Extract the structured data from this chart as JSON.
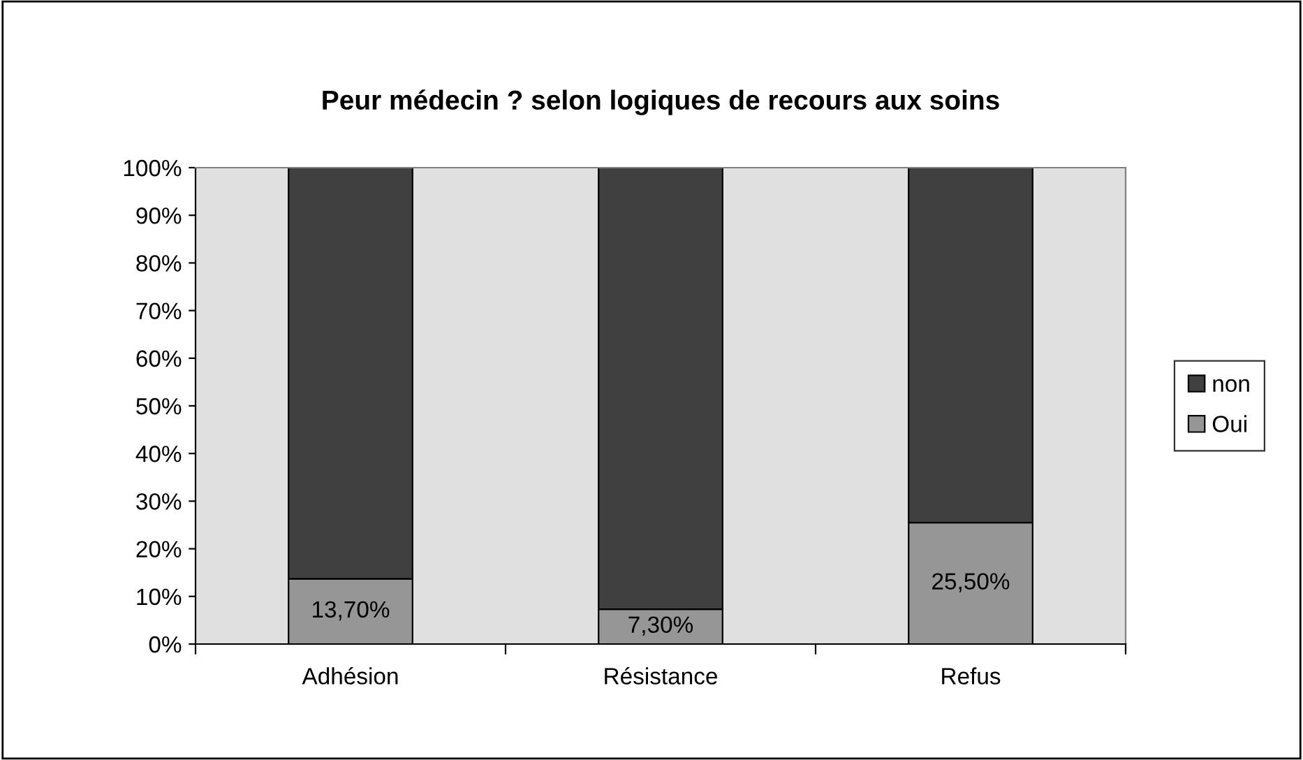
{
  "chart_data": {
    "type": "bar",
    "title": "Peur médecin ? selon logiques de recours aux soins",
    "categories": [
      "Adhésion",
      "Résistance",
      "Refus"
    ],
    "stacked": true,
    "series": [
      {
        "name": "Oui",
        "color": "#969696",
        "values": [
          13.7,
          7.3,
          25.5
        ],
        "value_labels": [
          "13,70%",
          "7,30%",
          "25,50%"
        ]
      },
      {
        "name": "non",
        "color": "#404040",
        "values": [
          86.3,
          92.7,
          74.5
        ]
      }
    ],
    "ylim": [
      0,
      100
    ],
    "yticks": [
      {
        "value": 0,
        "label": "0%"
      },
      {
        "value": 10,
        "label": "10%"
      },
      {
        "value": 20,
        "label": "20%"
      },
      {
        "value": 30,
        "label": "30%"
      },
      {
        "value": 40,
        "label": "40%"
      },
      {
        "value": 50,
        "label": "50%"
      },
      {
        "value": 60,
        "label": "60%"
      },
      {
        "value": 70,
        "label": "70%"
      },
      {
        "value": 80,
        "label": "80%"
      },
      {
        "value": 90,
        "label": "90%"
      },
      {
        "value": 100,
        "label": "100%"
      }
    ],
    "grid": false,
    "legend": "right"
  }
}
